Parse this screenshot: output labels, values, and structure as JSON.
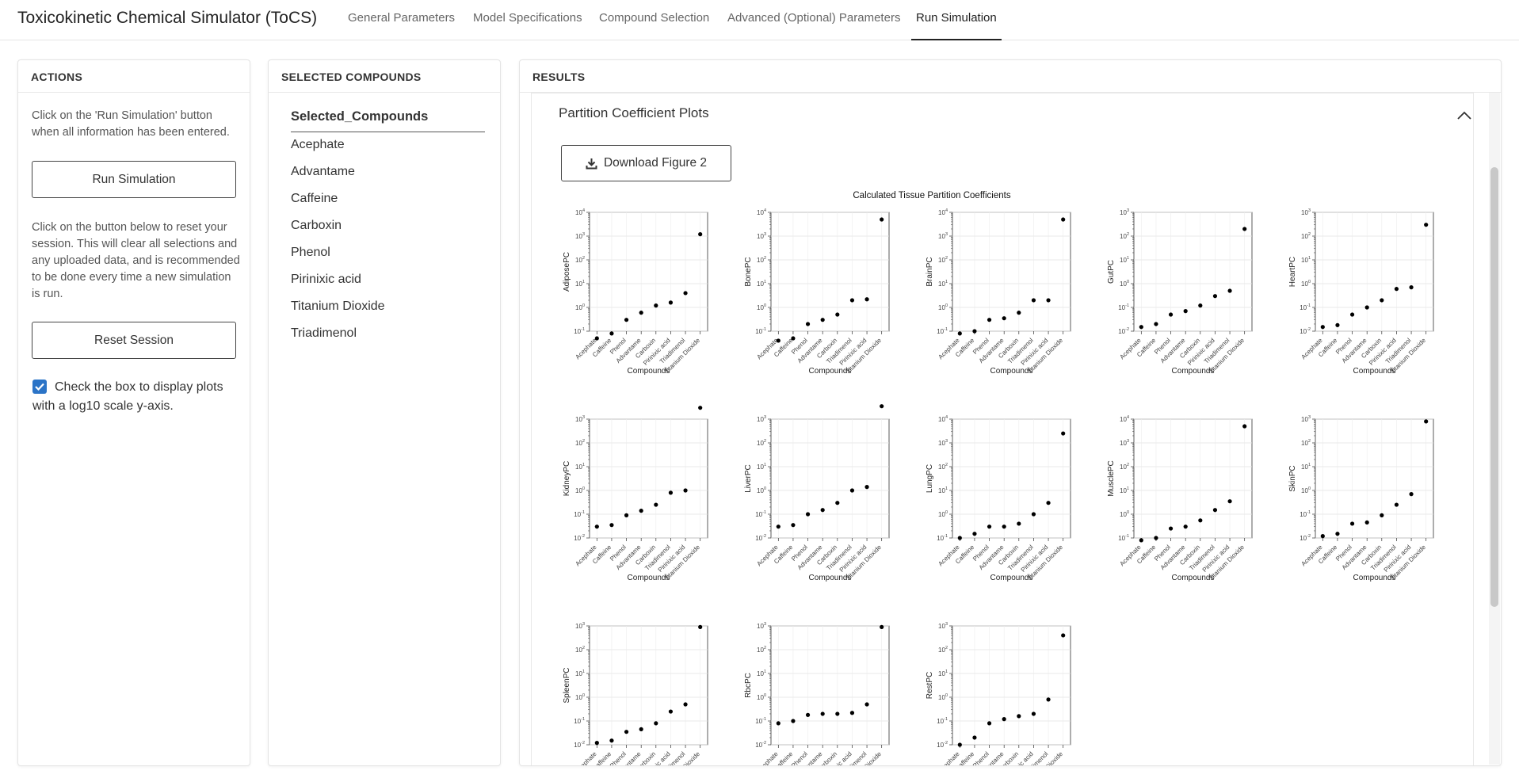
{
  "app": {
    "title": "Toxicokinetic Chemical Simulator (ToCS)",
    "tabs": [
      {
        "label": "General Parameters"
      },
      {
        "label": "Model Specifications"
      },
      {
        "label": "Compound Selection"
      },
      {
        "label": "Advanced (Optional) Parameters"
      },
      {
        "label": "Run Simulation"
      }
    ],
    "active_tab": "Run Simulation"
  },
  "actions": {
    "header": "ACTIONS",
    "run_help": "Click on the 'Run Simulation' button when all information has been entered.",
    "run_label": "Run Simulation",
    "reset_help": "Click on the button below to reset your session. This will clear all selections and any uploaded data, and is recommended to be done every time a new simulation is run.",
    "reset_label": "Reset Session",
    "log_checkbox_label": "Check the box to display plots with a log10 scale y-axis.",
    "log_checked": true
  },
  "selected": {
    "header": "SELECTED COMPOUNDS",
    "column": "Selected_Compounds",
    "items": [
      "Acephate",
      "Advantame",
      "Caffeine",
      "Carboxin",
      "Phenol",
      "Pirinixic acid",
      "Titanium Dioxide",
      "Triadimenol"
    ]
  },
  "results": {
    "header": "RESULTS",
    "section_title": "Partition Coefficient Plots",
    "download_label": "Download Figure 2"
  },
  "chart_data": {
    "type": "scatter",
    "title": "Calculated Tissue Partition Coefficients",
    "xlabel": "Compounds",
    "y_scale": "log10",
    "categories": [
      "Acephate",
      "Caffeine",
      "Phenol",
      "Advantame",
      "Carboxin",
      "Pirinixic acid",
      "Triadimenol",
      "Titanium Dioxide"
    ],
    "grid": true,
    "panels": [
      {
        "ylabel": "AdiposePC",
        "categories": [
          "Acephate",
          "Caffeine",
          "Phenol",
          "Advantame",
          "Carboxin",
          "Pirinixic acid",
          "Triadimenol",
          "Titanium Dioxide"
        ],
        "values": [
          0.05,
          0.08,
          0.3,
          0.6,
          1.2,
          1.6,
          4,
          1200
        ],
        "ylim_exp": [
          -1,
          4
        ]
      },
      {
        "ylabel": "BonePC",
        "categories": [
          "Acephate",
          "Caffeine",
          "Phenol",
          "Advantame",
          "Carboxin",
          "Triadimenol",
          "Pirinixic acid",
          "Titanium Dioxide"
        ],
        "values": [
          0.04,
          0.05,
          0.2,
          0.3,
          0.5,
          2,
          2.2,
          5000
        ],
        "ylim_exp": [
          -1,
          4
        ]
      },
      {
        "ylabel": "BrainPC",
        "categories": [
          "Acephate",
          "Caffeine",
          "Phenol",
          "Advantame",
          "Carboxin",
          "Triadimenol",
          "Pirinixic acid",
          "Titanium Dioxide"
        ],
        "values": [
          0.08,
          0.1,
          0.3,
          0.35,
          0.6,
          2,
          2,
          5000
        ],
        "ylim_exp": [
          -1,
          4
        ]
      },
      {
        "ylabel": "GutPC",
        "categories": [
          "Acephate",
          "Caffeine",
          "Phenol",
          "Advantame",
          "Carboxin",
          "Pirinixic acid",
          "Triadimenol",
          "Titanium Dioxide"
        ],
        "values": [
          0.015,
          0.02,
          0.05,
          0.07,
          0.12,
          0.3,
          0.5,
          200
        ],
        "ylim_exp": [
          -2,
          3
        ]
      },
      {
        "ylabel": "HeartPC",
        "categories": [
          "Acephate",
          "Caffeine",
          "Phenol",
          "Advantame",
          "Carboxin",
          "Pirinixic acid",
          "Triadimenol",
          "Titanium Dioxide"
        ],
        "values": [
          0.015,
          0.018,
          0.05,
          0.1,
          0.2,
          0.6,
          0.7,
          300
        ],
        "ylim_exp": [
          -2,
          3
        ]
      },
      {
        "ylabel": "KidneyPC",
        "categories": [
          "Acephate",
          "Caffeine",
          "Phenol",
          "Advantame",
          "Carboxin",
          "Triadimenol",
          "Pirinixic acid",
          "Titanium Dioxide"
        ],
        "values": [
          0.03,
          0.035,
          0.09,
          0.14,
          0.25,
          0.8,
          1,
          3000
        ],
        "ylim_exp": [
          -2,
          3
        ]
      },
      {
        "ylabel": "LiverPC",
        "categories": [
          "Acephate",
          "Caffeine",
          "Phenol",
          "Advantame",
          "Carboxin",
          "Triadimenol",
          "Pirinixic acid",
          "Titanium Dioxide"
        ],
        "values": [
          0.03,
          0.035,
          0.1,
          0.15,
          0.3,
          1,
          1.4,
          3500
        ],
        "ylim_exp": [
          -2,
          3
        ]
      },
      {
        "ylabel": "LungPC",
        "categories": [
          "Acephate",
          "Caffeine",
          "Phenol",
          "Advantame",
          "Carboxin",
          "Triadimenol",
          "Pirinixic acid",
          "Titanium Dioxide"
        ],
        "values": [
          0.1,
          0.15,
          0.3,
          0.3,
          0.4,
          1,
          3,
          2500
        ],
        "ylim_exp": [
          -1,
          4
        ]
      },
      {
        "ylabel": "MusclePC",
        "categories": [
          "Acephate",
          "Caffeine",
          "Phenol",
          "Advantame",
          "Carboxin",
          "Triadimenol",
          "Pirinixic acid",
          "Titanium Dioxide"
        ],
        "values": [
          0.08,
          0.1,
          0.25,
          0.3,
          0.55,
          1.5,
          3.5,
          5000
        ],
        "ylim_exp": [
          -1,
          4
        ]
      },
      {
        "ylabel": "SkinPC",
        "categories": [
          "Acephate",
          "Caffeine",
          "Phenol",
          "Advantame",
          "Carboxin",
          "Triadimenol",
          "Pirinixic acid",
          "Titanium Dioxide"
        ],
        "values": [
          0.012,
          0.015,
          0.04,
          0.045,
          0.09,
          0.25,
          0.7,
          800
        ],
        "ylim_exp": [
          -2,
          3
        ]
      },
      {
        "ylabel": "SpleenPC",
        "categories": [
          "Acephate",
          "Caffeine",
          "Phenol",
          "Advantame",
          "Carboxin",
          "Pirinixic acid",
          "Triadimenol",
          "Titanium Dioxide"
        ],
        "values": [
          0.012,
          0.015,
          0.035,
          0.045,
          0.08,
          0.25,
          0.5,
          900
        ],
        "ylim_exp": [
          -2,
          3
        ]
      },
      {
        "ylabel": "RbcPC",
        "categories": [
          "Acephate",
          "Caffeine",
          "Phenol",
          "Advantame",
          "Carboxin",
          "Pirinixic acid",
          "Triadimenol",
          "Titanium Dioxide"
        ],
        "values": [
          0.08,
          0.1,
          0.18,
          0.2,
          0.2,
          0.22,
          0.5,
          900
        ],
        "ylim_exp": [
          -2,
          3
        ]
      },
      {
        "ylabel": "RestPC",
        "categories": [
          "Acephate",
          "Caffeine",
          "Phenol",
          "Advantame",
          "Carboxin",
          "Pirinixic acid",
          "Triadimenol",
          "Titanium Dioxide"
        ],
        "values": [
          0.01,
          0.02,
          0.08,
          0.12,
          0.16,
          0.2,
          0.8,
          400
        ],
        "ylim_exp": [
          -2,
          3
        ]
      }
    ]
  }
}
